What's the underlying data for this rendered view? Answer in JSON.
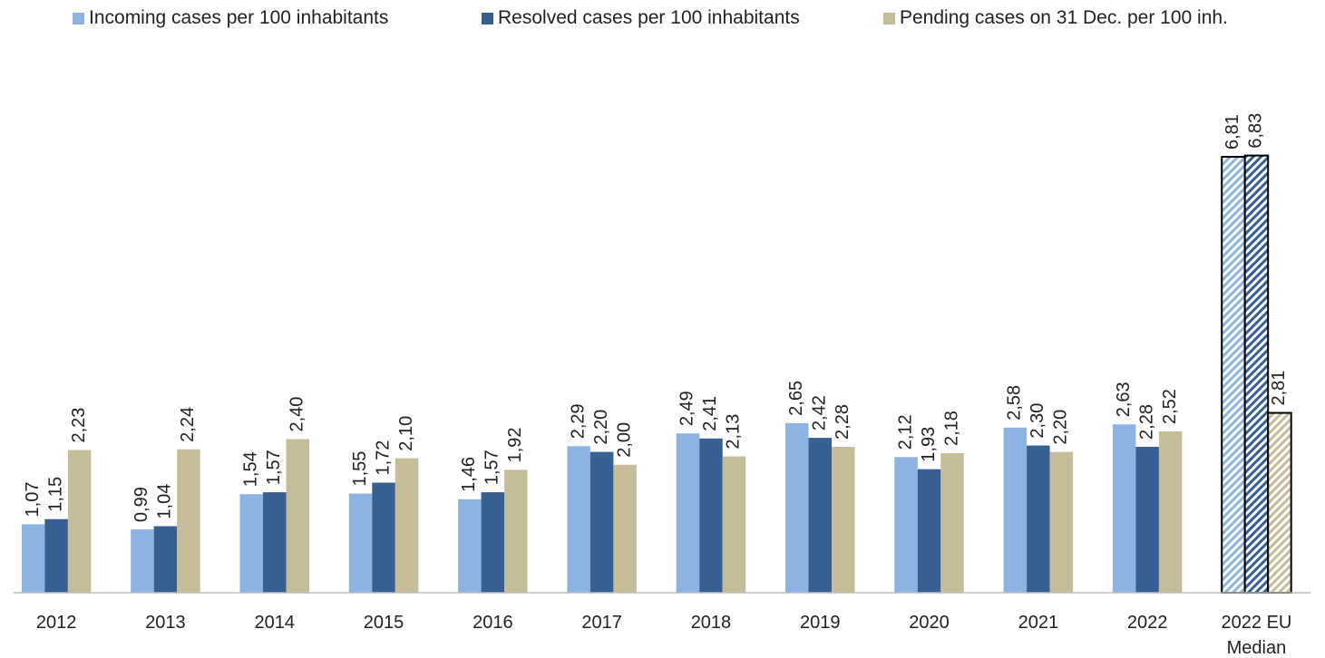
{
  "chart_data": {
    "type": "bar",
    "categories": [
      "2012",
      "2013",
      "2014",
      "2015",
      "2016",
      "2017",
      "2018",
      "2019",
      "2020",
      "2021",
      "2022",
      "2022 EU Median"
    ],
    "series": [
      {
        "name": "Incoming cases per 100 inhabitants",
        "color": "#8db3e2",
        "values": [
          1.07,
          0.99,
          1.54,
          1.55,
          1.46,
          2.29,
          2.49,
          2.65,
          2.12,
          2.58,
          2.63,
          6.81
        ],
        "value_labels": [
          "1,07",
          "0,99",
          "1,54",
          "1,55",
          "1,46",
          "2,29",
          "2,49",
          "2,65",
          "2,12",
          "2,58",
          "2,63",
          "6,81"
        ]
      },
      {
        "name": "Resolved cases per 100 inhabitants",
        "color": "#366092",
        "values": [
          1.15,
          1.04,
          1.57,
          1.72,
          1.57,
          2.2,
          2.41,
          2.42,
          1.93,
          2.3,
          2.28,
          6.83
        ],
        "value_labels": [
          "1,15",
          "1,04",
          "1,57",
          "1,72",
          "1,57",
          "2,20",
          "2,41",
          "2,42",
          "1,93",
          "2,30",
          "2,28",
          "6,83"
        ]
      },
      {
        "name": "Pending cases on 31 Dec. per 100 inh.",
        "color": "#c4bd97",
        "values": [
          2.23,
          2.24,
          2.4,
          2.1,
          1.92,
          2.0,
          2.13,
          2.28,
          2.18,
          2.2,
          2.52,
          2.81
        ],
        "value_labels": [
          "2,23",
          "2,24",
          "2,40",
          "2,10",
          "1,92",
          "2,00",
          "2,13",
          "2,28",
          "2,18",
          "2,20",
          "2,52",
          "2,81"
        ]
      }
    ],
    "ylim": [
      0,
      8
    ],
    "hatched_category": "2022 EU Median",
    "legend": "top"
  }
}
